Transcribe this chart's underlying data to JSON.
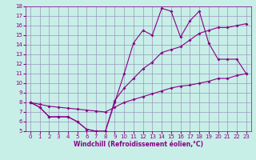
{
  "xlabel": "Windchill (Refroidissement éolien,°C)",
  "xlim": [
    -0.5,
    23.5
  ],
  "ylim": [
    5,
    18
  ],
  "yticks": [
    5,
    6,
    7,
    8,
    9,
    10,
    11,
    12,
    13,
    14,
    15,
    16,
    17,
    18
  ],
  "xticks": [
    0,
    1,
    2,
    3,
    4,
    5,
    6,
    7,
    8,
    9,
    10,
    11,
    12,
    13,
    14,
    15,
    16,
    17,
    18,
    19,
    20,
    21,
    22,
    23
  ],
  "bg_color": "#c8eee8",
  "grid_color": "#9999bb",
  "line_color": "#880088",
  "line1_x": [
    0,
    1,
    2,
    3,
    4,
    5,
    6,
    7,
    8,
    9,
    10,
    11,
    12,
    13,
    14,
    15,
    16,
    17,
    18,
    19,
    20,
    21,
    22,
    23
  ],
  "line1_y": [
    8.0,
    7.5,
    6.5,
    6.5,
    6.5,
    6.0,
    5.2,
    5.0,
    5.0,
    8.0,
    11.0,
    14.2,
    15.5,
    15.0,
    17.8,
    17.5,
    14.8,
    16.5,
    17.5,
    14.2,
    12.5,
    12.5,
    12.5,
    11.0
  ],
  "line2_x": [
    0,
    1,
    2,
    3,
    4,
    5,
    6,
    7,
    8,
    9,
    10,
    11,
    12,
    13,
    14,
    15,
    16,
    17,
    18,
    19,
    20,
    21,
    22,
    23
  ],
  "line2_y": [
    8.0,
    7.5,
    6.5,
    6.5,
    6.5,
    6.0,
    5.2,
    5.0,
    5.0,
    8.2,
    9.5,
    10.5,
    11.5,
    12.2,
    13.2,
    13.5,
    13.8,
    14.5,
    15.2,
    15.5,
    15.8,
    15.8,
    16.0,
    16.2
  ],
  "line3_x": [
    0,
    1,
    2,
    3,
    4,
    5,
    6,
    7,
    8,
    9,
    10,
    11,
    12,
    13,
    14,
    15,
    16,
    17,
    18,
    19,
    20,
    21,
    22,
    23
  ],
  "line3_y": [
    8.0,
    7.8,
    7.6,
    7.5,
    7.4,
    7.3,
    7.2,
    7.1,
    7.0,
    7.5,
    8.0,
    8.3,
    8.6,
    8.9,
    9.2,
    9.5,
    9.7,
    9.8,
    10.0,
    10.2,
    10.5,
    10.5,
    10.8,
    11.0
  ]
}
